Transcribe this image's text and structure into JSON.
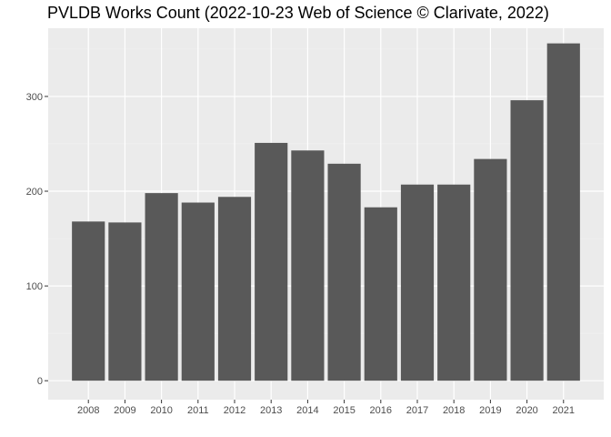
{
  "chart_data": {
    "type": "bar",
    "title": "PVLDB Works Count (2022-10-23 Web of Science © Clarivate, 2022)",
    "xlabel": "",
    "ylabel": "",
    "categories": [
      "2008",
      "2009",
      "2010",
      "2011",
      "2012",
      "2013",
      "2014",
      "2015",
      "2016",
      "2017",
      "2018",
      "2019",
      "2020",
      "2021"
    ],
    "values": [
      168,
      167,
      198,
      188,
      194,
      251,
      243,
      229,
      183,
      207,
      207,
      234,
      296,
      356
    ],
    "ylim": [
      -20,
      372
    ],
    "yticks": [
      0,
      100,
      200,
      300
    ],
    "grid": true,
    "legend": "none",
    "colors": {
      "bar": "#595959",
      "panel": "#ebebeb",
      "grid_major": "#ffffff",
      "grid_minor": "#f2f2f2",
      "tick_text": "#4d4d4d",
      "tick_mark": "#333333"
    }
  }
}
